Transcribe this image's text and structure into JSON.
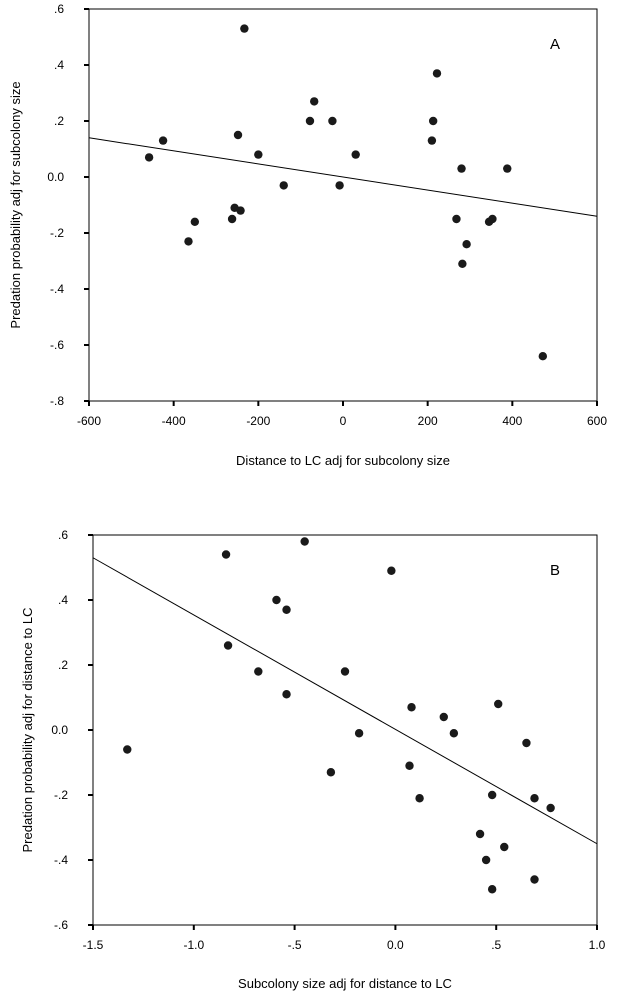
{
  "chart_data": [
    {
      "type": "scatter",
      "panel_label": "A",
      "xlabel": "Distance to LC adj for subcolony size",
      "ylabel": "Predation probability adj for subcolony size",
      "xlim": [
        -600,
        600
      ],
      "ylim": [
        -0.8,
        0.6
      ],
      "x_ticks": [
        -600,
        -400,
        -200,
        0,
        200,
        400,
        600
      ],
      "x_tick_labels": [
        "-600",
        "-400",
        "-200",
        "0",
        "200",
        "400",
        "600"
      ],
      "y_ticks": [
        0.6,
        0.4,
        0.2,
        0.0,
        -0.2,
        -0.4,
        -0.6,
        -0.8
      ],
      "y_tick_labels": [
        ".6",
        ".4",
        ".2",
        "0.0",
        "-.2",
        "-.4",
        "-.6",
        "-.8"
      ],
      "grid": false,
      "points": [
        {
          "x": -458,
          "y": 0.07
        },
        {
          "x": -425,
          "y": 0.13
        },
        {
          "x": -365,
          "y": -0.23
        },
        {
          "x": -350,
          "y": -0.16
        },
        {
          "x": -262,
          "y": -0.15
        },
        {
          "x": -256,
          "y": -0.11
        },
        {
          "x": -248,
          "y": 0.15
        },
        {
          "x": -242,
          "y": -0.12
        },
        {
          "x": -233,
          "y": 0.53
        },
        {
          "x": -200,
          "y": 0.08
        },
        {
          "x": -140,
          "y": -0.03
        },
        {
          "x": -78,
          "y": 0.2
        },
        {
          "x": -68,
          "y": 0.27
        },
        {
          "x": -25,
          "y": 0.2
        },
        {
          "x": -8,
          "y": -0.03
        },
        {
          "x": 30,
          "y": 0.08
        },
        {
          "x": 210,
          "y": 0.13
        },
        {
          "x": 213,
          "y": 0.2
        },
        {
          "x": 222,
          "y": 0.37
        },
        {
          "x": 268,
          "y": -0.15
        },
        {
          "x": 280,
          "y": 0.03
        },
        {
          "x": 282,
          "y": -0.31
        },
        {
          "x": 292,
          "y": -0.24
        },
        {
          "x": 345,
          "y": -0.16
        },
        {
          "x": 353,
          "y": -0.15
        },
        {
          "x": 388,
          "y": 0.03
        },
        {
          "x": 472,
          "y": -0.64
        }
      ],
      "fit_line": {
        "x": [
          -600,
          600
        ],
        "y": [
          0.14,
          -0.14
        ]
      }
    },
    {
      "type": "scatter",
      "panel_label": "B",
      "xlabel": "Subcolony size adj for distance to LC",
      "ylabel": "Predation probability adj for distance to LC",
      "xlim": [
        -1.5,
        1.0
      ],
      "ylim": [
        -0.6,
        0.6
      ],
      "x_ticks": [
        -1.5,
        -1.0,
        -0.5,
        0.0,
        0.5,
        1.0
      ],
      "x_tick_labels": [
        "-1.5",
        "-1.0",
        "-.5",
        "0.0",
        ".5",
        "1.0"
      ],
      "y_ticks": [
        0.6,
        0.4,
        0.2,
        0.0,
        -0.2,
        -0.4,
        -0.6
      ],
      "y_tick_labels": [
        ".6",
        ".4",
        ".2",
        "0.0",
        "-.2",
        "-.4",
        "-.6"
      ],
      "grid": false,
      "points": [
        {
          "x": -1.33,
          "y": -0.06
        },
        {
          "x": -0.84,
          "y": 0.54
        },
        {
          "x": -0.83,
          "y": 0.26
        },
        {
          "x": -0.68,
          "y": 0.18
        },
        {
          "x": -0.59,
          "y": 0.4
        },
        {
          "x": -0.54,
          "y": 0.37
        },
        {
          "x": -0.54,
          "y": 0.11
        },
        {
          "x": -0.45,
          "y": 0.58
        },
        {
          "x": -0.25,
          "y": 0.18
        },
        {
          "x": -0.18,
          "y": -0.01
        },
        {
          "x": -0.32,
          "y": -0.13
        },
        {
          "x": -0.02,
          "y": 0.49
        },
        {
          "x": 0.08,
          "y": 0.07
        },
        {
          "x": 0.07,
          "y": -0.11
        },
        {
          "x": 0.12,
          "y": -0.21
        },
        {
          "x": 0.24,
          "y": 0.04
        },
        {
          "x": 0.29,
          "y": -0.01
        },
        {
          "x": 0.42,
          "y": -0.32
        },
        {
          "x": 0.45,
          "y": -0.4
        },
        {
          "x": 0.48,
          "y": -0.2
        },
        {
          "x": 0.48,
          "y": -0.49
        },
        {
          "x": 0.51,
          "y": 0.08
        },
        {
          "x": 0.54,
          "y": -0.36
        },
        {
          "x": 0.65,
          "y": -0.04
        },
        {
          "x": 0.69,
          "y": -0.21
        },
        {
          "x": 0.69,
          "y": -0.46
        },
        {
          "x": 0.77,
          "y": -0.24
        }
      ],
      "fit_line": {
        "x": [
          -1.5,
          1.0
        ],
        "y": [
          0.53,
          -0.35
        ]
      }
    }
  ]
}
